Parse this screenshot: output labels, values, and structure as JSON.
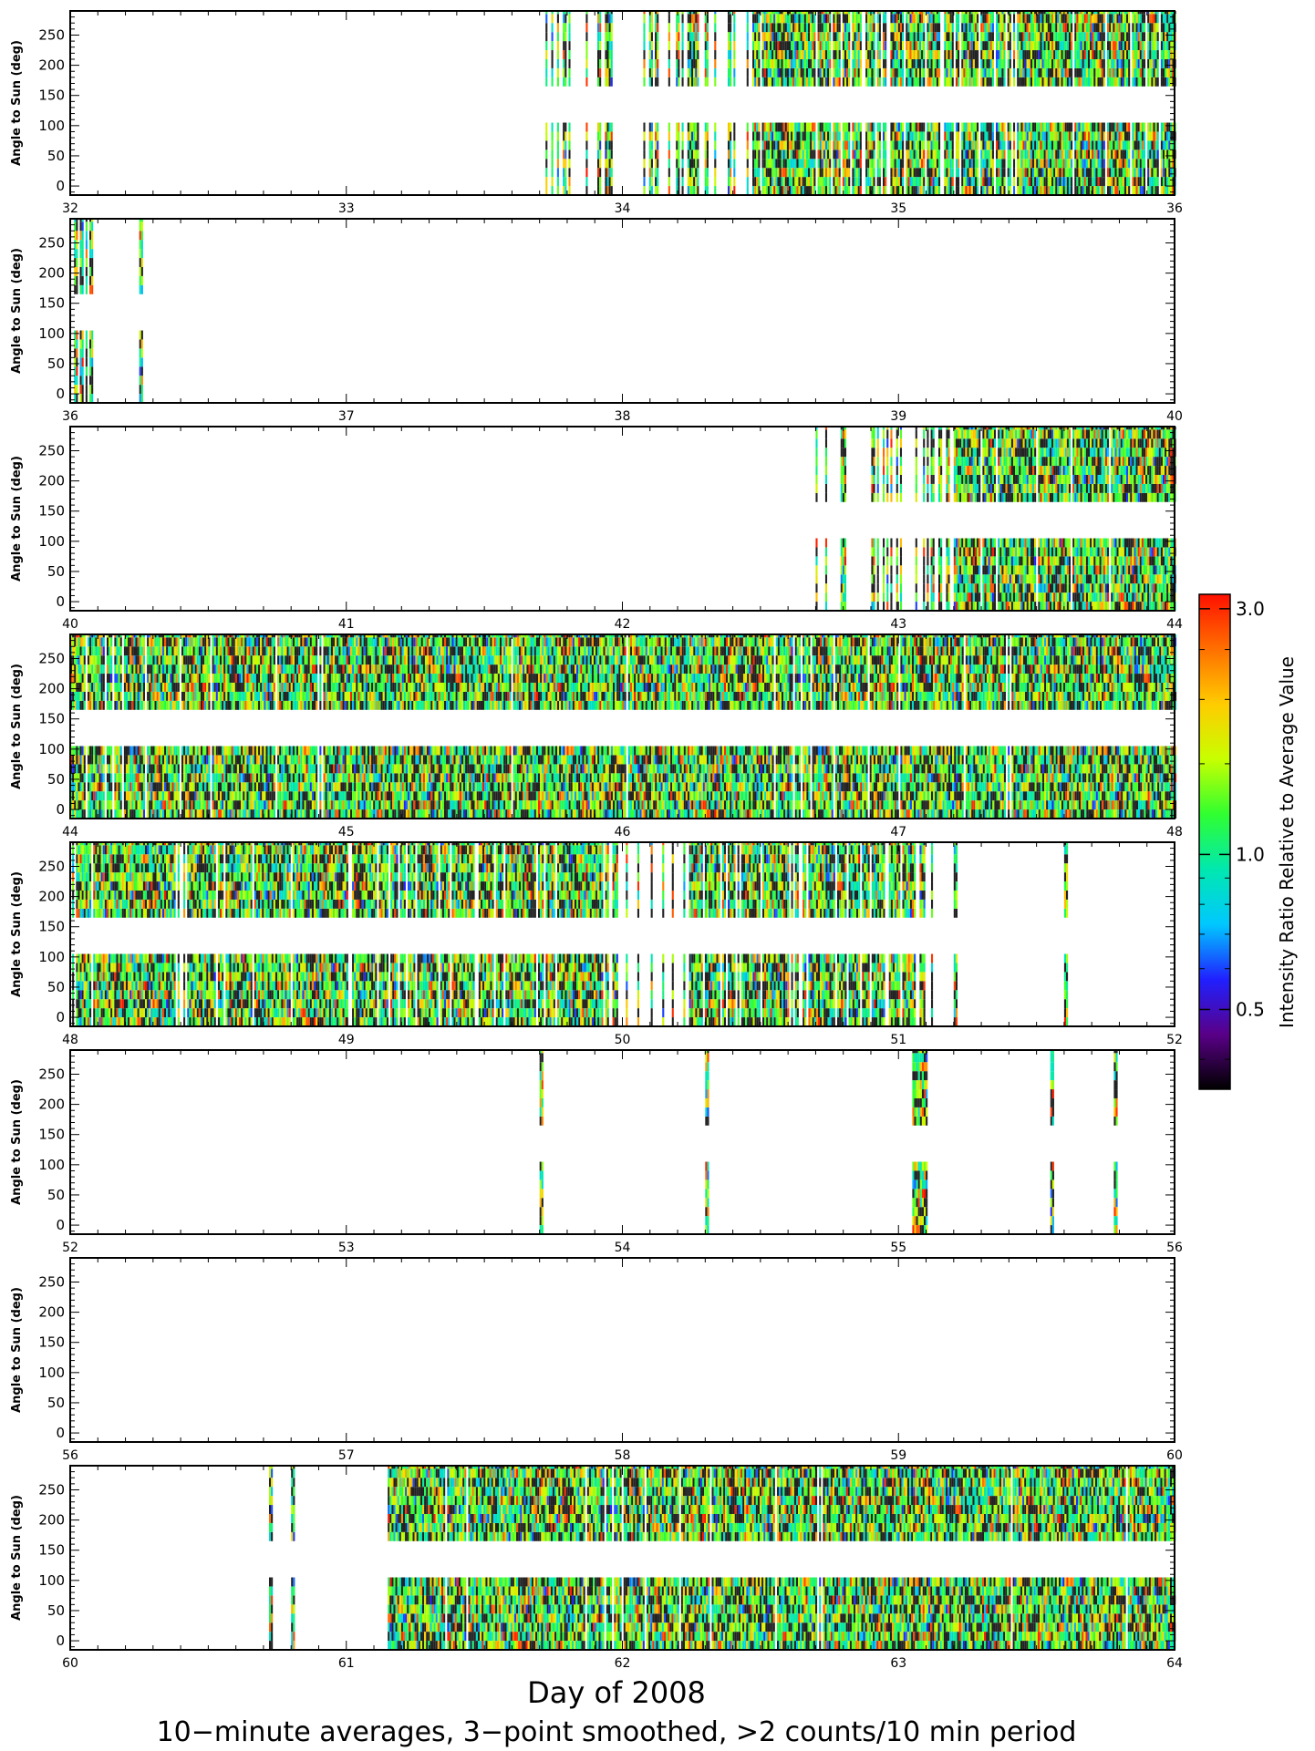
{
  "chart_data": {
    "type": "heatmap",
    "xlabel": "Day of 2008",
    "ylabel": "Angle to Sun (deg)",
    "subtitle": "10−minute averages, 3−point smoothed, >2 counts/10 min period",
    "colorbar": {
      "label": "Intensity Ratio Relative to Average Value",
      "ticks": [
        "0.5",
        "1.0",
        "3.0"
      ],
      "tick_values": [
        0.5,
        1.0,
        3.0
      ],
      "scale": "log",
      "range": [
        0.35,
        3.2
      ],
      "colormap": [
        "#000000",
        "#5a0088",
        "#2020ff",
        "#00c8ff",
        "#00e8b0",
        "#30ff30",
        "#c8ff00",
        "#ffcc00",
        "#ff7000",
        "#ff1000"
      ]
    },
    "ylim": [
      -15,
      290
    ],
    "yticks": [
      0,
      50,
      100,
      150,
      200,
      250
    ],
    "angle_bands_deg": [
      [
        -15,
        105
      ],
      [
        165,
        290
      ]
    ],
    "panels": [
      {
        "xlim": [
          32,
          36
        ],
        "xticks": [
          "32",
          "33",
          "34",
          "35",
          "36"
        ],
        "coverage": [
          [
            33.68,
            34.45,
            0.3
          ],
          [
            34.45,
            36.0,
            0.9
          ]
        ]
      },
      {
        "xlim": [
          36,
          40
        ],
        "xticks": [
          "36",
          "37",
          "38",
          "39",
          "40"
        ],
        "coverage": [
          [
            36.0,
            36.08,
            0.6
          ],
          [
            36.25,
            36.26,
            1.0
          ]
        ]
      },
      {
        "xlim": [
          40,
          44
        ],
        "xticks": [
          "40",
          "41",
          "42",
          "43",
          "44"
        ],
        "coverage": [
          [
            42.7,
            43.2,
            0.35
          ],
          [
            43.2,
            44.0,
            0.95
          ]
        ]
      },
      {
        "xlim": [
          44,
          48
        ],
        "xticks": [
          "44",
          "45",
          "46",
          "47",
          "48"
        ],
        "coverage": [
          [
            44.0,
            48.0,
            0.98
          ]
        ]
      },
      {
        "xlim": [
          48,
          52
        ],
        "xticks": [
          "48",
          "49",
          "50",
          "51",
          "52"
        ],
        "coverage": [
          [
            48.0,
            49.95,
            0.9
          ],
          [
            49.95,
            50.25,
            0.3
          ],
          [
            50.25,
            51.12,
            0.8
          ],
          [
            51.2,
            51.21,
            1.0
          ],
          [
            51.6,
            51.61,
            1.0
          ]
        ]
      },
      {
        "xlim": [
          52,
          56
        ],
        "xticks": [
          "52",
          "53",
          "54",
          "55",
          "56"
        ],
        "coverage": [
          [
            53.7,
            53.71,
            1.0
          ],
          [
            54.3,
            54.31,
            1.0
          ],
          [
            55.05,
            55.1,
            1.0
          ],
          [
            55.55,
            55.56,
            1.0
          ],
          [
            55.78,
            55.79,
            1.0
          ]
        ]
      },
      {
        "xlim": [
          56,
          60
        ],
        "xticks": [
          "56",
          "57",
          "58",
          "59",
          "60"
        ],
        "coverage": []
      },
      {
        "xlim": [
          60,
          64
        ],
        "xticks": [
          "60",
          "61",
          "62",
          "63",
          "64"
        ],
        "coverage": [
          [
            60.72,
            60.73,
            1.0
          ],
          [
            60.8,
            60.81,
            1.0
          ],
          [
            61.15,
            64.0,
            0.98
          ]
        ]
      }
    ]
  }
}
